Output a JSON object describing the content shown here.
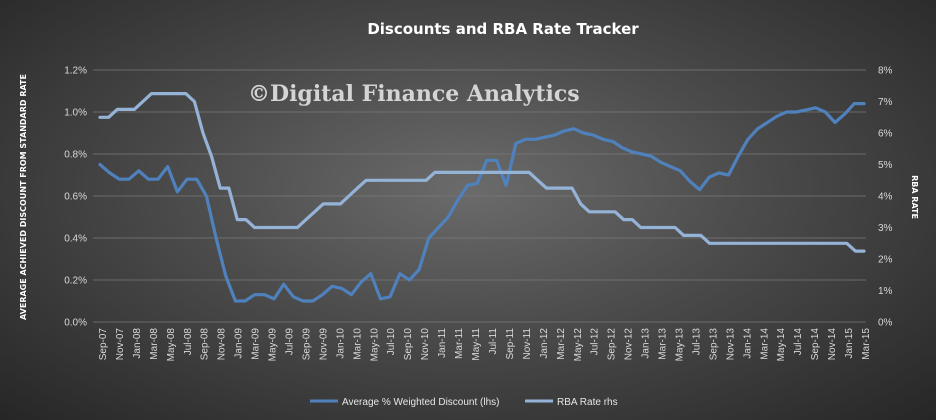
{
  "colors": {
    "discount_line": "#4f81bd",
    "rba_line": "#95b3d7",
    "grid": "#7a7a7a",
    "text": "#d9d9d9"
  },
  "watermark": "©Digital Finance Analytics",
  "chart_data": {
    "type": "line",
    "title": "Discounts  and RBA Rate Tracker",
    "ylabel": "AVERAGE ACHIEVED DISCOUNT FROM STANDARD RATE",
    "y2label": "RBA RATE",
    "ylim": [
      0,
      0.012
    ],
    "y2lim": [
      0,
      8
    ],
    "y_ticks": [
      "0.0%",
      "0.2%",
      "0.4%",
      "0.6%",
      "0.8%",
      "1.0%",
      "1.2%"
    ],
    "y2_ticks": [
      "0%",
      "1%",
      "2%",
      "3%",
      "4%",
      "5%",
      "6%",
      "7%",
      "8%"
    ],
    "grid": true,
    "legend_position": "bottom",
    "x_tick_labels": [
      "Sep-07",
      "Nov-07",
      "Jan-08",
      "Mar-08",
      "May-08",
      "Jul-08",
      "Sep-08",
      "Nov-08",
      "Jan-09",
      "Mar-09",
      "May-09",
      "Jul-09",
      "Sep-09",
      "Nov-09",
      "Jan-10",
      "Mar-10",
      "May-10",
      "Jul-10",
      "Sep-10",
      "Nov-10",
      "Jan-11",
      "Mar-11",
      "May-11",
      "Jul-11",
      "Sep-11",
      "Nov-11",
      "Jan-12",
      "Mar-12",
      "May-12",
      "Jul-12",
      "Sep-12",
      "Nov-12",
      "Jan-13",
      "Mar-13",
      "May-13",
      "Jul-13",
      "Sep-13",
      "Nov-13",
      "Jan-14",
      "Mar-14",
      "May-14",
      "Jul-14",
      "Sep-14",
      "Nov-14",
      "Jan-15",
      "Mar-15"
    ],
    "series": [
      {
        "name": "Average % Weighted Discount (lhs)",
        "axis": "left",
        "color": "#4f81bd",
        "values": [
          0.0075,
          0.0071,
          0.0068,
          0.0068,
          0.0072,
          0.0068,
          0.0068,
          0.0074,
          0.0062,
          0.0068,
          0.0068,
          0.006,
          0.004,
          0.0022,
          0.001,
          0.001,
          0.0013,
          0.0013,
          0.0011,
          0.0018,
          0.0012,
          0.001,
          0.001,
          0.0013,
          0.0017,
          0.0016,
          0.0013,
          0.0019,
          0.0023,
          0.0011,
          0.0012,
          0.0023,
          0.002,
          0.0025,
          0.004,
          0.0045,
          0.005,
          0.0058,
          0.0065,
          0.0066,
          0.0077,
          0.0077,
          0.0065,
          0.0085,
          0.0087,
          0.0087,
          0.0088,
          0.0089,
          0.0091,
          0.0092,
          0.009,
          0.0089,
          0.0087,
          0.0086,
          0.0083,
          0.0081,
          0.008,
          0.0079,
          0.0076,
          0.0074,
          0.0072,
          0.0067,
          0.0063,
          0.0069,
          0.0071,
          0.007,
          0.0079,
          0.0087,
          0.0092,
          0.0095,
          0.0098,
          0.01,
          0.01,
          0.0101,
          0.0102,
          0.01,
          0.0095,
          0.0099,
          0.0104,
          0.0104
        ]
      },
      {
        "name": "RBA Rate rhs",
        "axis": "right",
        "color": "#95b3d7",
        "values": [
          6.5,
          6.5,
          6.75,
          6.75,
          6.75,
          7.0,
          7.25,
          7.25,
          7.25,
          7.25,
          7.25,
          7.0,
          6.0,
          5.25,
          4.25,
          4.25,
          3.25,
          3.25,
          3.0,
          3.0,
          3.0,
          3.0,
          3.0,
          3.0,
          3.25,
          3.5,
          3.75,
          3.75,
          3.75,
          4.0,
          4.25,
          4.5,
          4.5,
          4.5,
          4.5,
          4.5,
          4.5,
          4.5,
          4.5,
          4.75,
          4.75,
          4.75,
          4.75,
          4.75,
          4.75,
          4.75,
          4.75,
          4.75,
          4.75,
          4.75,
          4.75,
          4.5,
          4.25,
          4.25,
          4.25,
          4.25,
          3.75,
          3.5,
          3.5,
          3.5,
          3.5,
          3.25,
          3.25,
          3.0,
          3.0,
          3.0,
          3.0,
          3.0,
          2.75,
          2.75,
          2.75,
          2.5,
          2.5,
          2.5,
          2.5,
          2.5,
          2.5,
          2.5,
          2.5,
          2.5,
          2.5,
          2.5,
          2.5,
          2.5,
          2.5,
          2.5,
          2.5,
          2.5,
          2.25,
          2.25
        ]
      }
    ]
  }
}
